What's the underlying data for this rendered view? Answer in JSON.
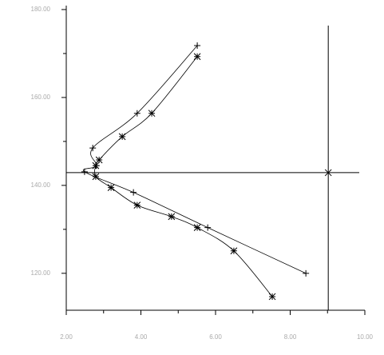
{
  "chart_data": {
    "type": "line",
    "xlim": [
      2,
      10
    ],
    "xticks": [
      {
        "value": 2,
        "label": "2.00"
      },
      {
        "value": 4,
        "label": "4.00"
      },
      {
        "value": 6,
        "label": "6.00"
      },
      {
        "value": 8,
        "label": "8.00"
      },
      {
        "value": 10,
        "label": "10.00"
      }
    ],
    "xminor": [
      3,
      5,
      7,
      9
    ],
    "ylim": [
      111.6,
      180.9
    ],
    "yticks": [
      {
        "value": 120,
        "label": "120.00"
      },
      {
        "value": 140,
        "label": "140.00"
      },
      {
        "value": 160,
        "label": "160.00"
      },
      {
        "value": 180,
        "label": "180.00"
      }
    ],
    "yminor": [
      130,
      150,
      170
    ],
    "series": [
      {
        "marker": "plus",
        "color": "#000000",
        "x": [
          5.51,
          3.9,
          2.71,
          2.81,
          2.49,
          3.8,
          5.79,
          8.42
        ],
        "values": [
          171.8,
          156.4,
          148.5,
          144.5,
          143.1,
          138.4,
          130.4,
          120.0
        ]
      },
      {
        "marker": "star",
        "color": "#000000",
        "x": [
          5.51,
          4.29,
          3.5,
          2.88,
          2.79,
          2.79,
          3.2,
          3.9,
          4.82,
          5.51,
          6.49,
          7.52
        ],
        "values": [
          169.3,
          156.4,
          151.1,
          145.8,
          144.5,
          142.0,
          139.5,
          135.5,
          132.9,
          130.4,
          125.1,
          114.7
        ]
      }
    ],
    "crosshair": {
      "x": 9.02,
      "y": 142.9
    }
  }
}
